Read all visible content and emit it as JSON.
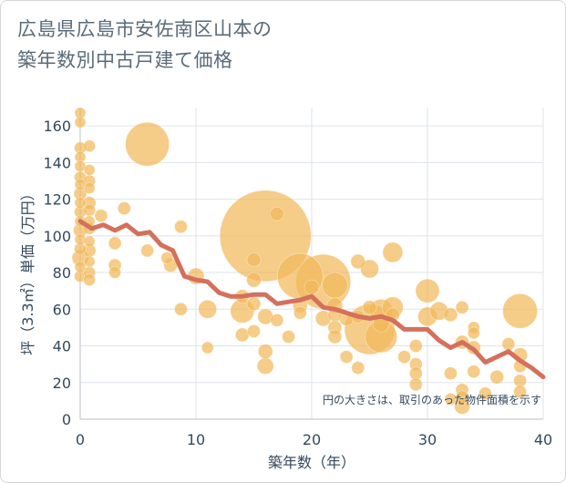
{
  "title_line1": "広島県広島市安佐南区山本の",
  "title_line2": "築年数別中古戸建て価格",
  "chart_data": {
    "type": "scatter",
    "xlabel": "築年数（年）",
    "ylabel": "坪（3.3㎡）単価（万円）",
    "xlim": [
      0,
      40
    ],
    "ylim": [
      0,
      170
    ],
    "x_ticks": [
      "0",
      "10",
      "20",
      "30",
      "40"
    ],
    "y_ticks": [
      "0",
      "20",
      "40",
      "60",
      "80",
      "100",
      "120",
      "140",
      "160"
    ],
    "x_tick_values": [
      0,
      10,
      20,
      30,
      40
    ],
    "y_tick_values": [
      0,
      20,
      40,
      60,
      80,
      100,
      120,
      140,
      160
    ],
    "grid": true,
    "bubble_color": "#f1b85a",
    "line_color": "#d4705c",
    "note": "円の大きさは、取引のあった物件面積を示す",
    "bubbles": [
      {
        "x": 0,
        "y": 167,
        "s": 1.2
      },
      {
        "x": 0,
        "y": 162,
        "s": 1.2
      },
      {
        "x": 0,
        "y": 148,
        "s": 1.3
      },
      {
        "x": 0,
        "y": 143,
        "s": 1.2
      },
      {
        "x": 0,
        "y": 138,
        "s": 1.2
      },
      {
        "x": 0,
        "y": 132,
        "s": 1.3
      },
      {
        "x": 0,
        "y": 128,
        "s": 1.2
      },
      {
        "x": 0,
        "y": 123,
        "s": 1.4
      },
      {
        "x": 0,
        "y": 118,
        "s": 1.2
      },
      {
        "x": 0,
        "y": 113,
        "s": 1.3
      },
      {
        "x": 0,
        "y": 108,
        "s": 1.2
      },
      {
        "x": 0,
        "y": 103,
        "s": 1.5
      },
      {
        "x": 0,
        "y": 98,
        "s": 1.2
      },
      {
        "x": 0,
        "y": 93,
        "s": 1.3
      },
      {
        "x": 0,
        "y": 88,
        "s": 1.8
      },
      {
        "x": 0,
        "y": 83,
        "s": 1.2
      },
      {
        "x": 0,
        "y": 78,
        "s": 1.3
      },
      {
        "x": 0.8,
        "y": 149,
        "s": 1.3
      },
      {
        "x": 0.8,
        "y": 136,
        "s": 1.2
      },
      {
        "x": 0.8,
        "y": 130,
        "s": 1.3
      },
      {
        "x": 0.8,
        "y": 126,
        "s": 1.2
      },
      {
        "x": 0.8,
        "y": 118,
        "s": 1.4
      },
      {
        "x": 0.8,
        "y": 114,
        "s": 1.3
      },
      {
        "x": 0.8,
        "y": 108,
        "s": 1.2
      },
      {
        "x": 0.8,
        "y": 104,
        "s": 1.3
      },
      {
        "x": 0.8,
        "y": 97,
        "s": 1.2
      },
      {
        "x": 0.8,
        "y": 92,
        "s": 1.4
      },
      {
        "x": 0.8,
        "y": 86,
        "s": 1.2
      },
      {
        "x": 0.8,
        "y": 80,
        "s": 1.3
      },
      {
        "x": 0.8,
        "y": 76,
        "s": 1.3
      },
      {
        "x": 1.8,
        "y": 111,
        "s": 1.4
      },
      {
        "x": 3,
        "y": 96,
        "s": 1.4
      },
      {
        "x": 3,
        "y": 84,
        "s": 1.4
      },
      {
        "x": 3,
        "y": 80,
        "s": 1.3
      },
      {
        "x": 3.8,
        "y": 115,
        "s": 1.4
      },
      {
        "x": 5.8,
        "y": 150,
        "s": 4.8
      },
      {
        "x": 5.8,
        "y": 92,
        "s": 1.4
      },
      {
        "x": 7.5,
        "y": 88,
        "s": 1.3
      },
      {
        "x": 7.8,
        "y": 84,
        "s": 1.5
      },
      {
        "x": 8.7,
        "y": 105,
        "s": 1.4
      },
      {
        "x": 8.7,
        "y": 60,
        "s": 1.4
      },
      {
        "x": 10,
        "y": 78,
        "s": 1.8
      },
      {
        "x": 11,
        "y": 60,
        "s": 2.0
      },
      {
        "x": 11,
        "y": 39,
        "s": 1.3
      },
      {
        "x": 14,
        "y": 67,
        "s": 1.5
      },
      {
        "x": 14,
        "y": 59,
        "s": 2.6
      },
      {
        "x": 14,
        "y": 46,
        "s": 1.5
      },
      {
        "x": 15,
        "y": 87,
        "s": 1.5
      },
      {
        "x": 15,
        "y": 76,
        "s": 1.6
      },
      {
        "x": 15,
        "y": 63,
        "s": 1.5
      },
      {
        "x": 15,
        "y": 48,
        "s": 1.4
      },
      {
        "x": 16,
        "y": 100,
        "s": 10.0
      },
      {
        "x": 16,
        "y": 56,
        "s": 1.7
      },
      {
        "x": 16,
        "y": 37,
        "s": 1.6
      },
      {
        "x": 16,
        "y": 29,
        "s": 1.8
      },
      {
        "x": 17,
        "y": 112,
        "s": 1.5
      },
      {
        "x": 17,
        "y": 54,
        "s": 1.4
      },
      {
        "x": 18,
        "y": 45,
        "s": 1.4
      },
      {
        "x": 19,
        "y": 78,
        "s": 5.0
      },
      {
        "x": 19,
        "y": 62,
        "s": 1.6
      },
      {
        "x": 19,
        "y": 58,
        "s": 1.4
      },
      {
        "x": 20,
        "y": 72,
        "s": 1.6
      },
      {
        "x": 21,
        "y": 75,
        "s": 6.0
      },
      {
        "x": 21,
        "y": 55,
        "s": 1.7
      },
      {
        "x": 22,
        "y": 73,
        "s": 2.8
      },
      {
        "x": 22,
        "y": 62,
        "s": 1.7
      },
      {
        "x": 22,
        "y": 57,
        "s": 1.5
      },
      {
        "x": 22,
        "y": 50,
        "s": 1.5
      },
      {
        "x": 22,
        "y": 45,
        "s": 1.5
      },
      {
        "x": 23,
        "y": 55,
        "s": 1.6
      },
      {
        "x": 23,
        "y": 34,
        "s": 1.4
      },
      {
        "x": 24,
        "y": 86,
        "s": 1.6
      },
      {
        "x": 24,
        "y": 56,
        "s": 1.4
      },
      {
        "x": 24,
        "y": 28,
        "s": 1.4
      },
      {
        "x": 25,
        "y": 82,
        "s": 2.0
      },
      {
        "x": 25,
        "y": 61,
        "s": 1.5
      },
      {
        "x": 25,
        "y": 49,
        "s": 5.5
      },
      {
        "x": 26,
        "y": 59,
        "s": 2.6
      },
      {
        "x": 26,
        "y": 52,
        "s": 1.8
      },
      {
        "x": 26,
        "y": 45,
        "s": 3.5
      },
      {
        "x": 27,
        "y": 91,
        "s": 2.2
      },
      {
        "x": 27,
        "y": 61,
        "s": 2.3
      },
      {
        "x": 27,
        "y": 57,
        "s": 1.5
      },
      {
        "x": 28,
        "y": 34,
        "s": 1.4
      },
      {
        "x": 29,
        "y": 30,
        "s": 1.4
      },
      {
        "x": 29,
        "y": 25,
        "s": 1.4
      },
      {
        "x": 29,
        "y": 19,
        "s": 1.4
      },
      {
        "x": 29,
        "y": 40,
        "s": 1.4
      },
      {
        "x": 30,
        "y": 70,
        "s": 2.6
      },
      {
        "x": 30,
        "y": 56,
        "s": 2.1
      },
      {
        "x": 31,
        "y": 59,
        "s": 2.0
      },
      {
        "x": 32,
        "y": 57,
        "s": 1.5
      },
      {
        "x": 32,
        "y": 25,
        "s": 1.4
      },
      {
        "x": 32,
        "y": 11,
        "s": 1.3
      },
      {
        "x": 33,
        "y": 61,
        "s": 1.4
      },
      {
        "x": 33,
        "y": 42,
        "s": 1.5
      },
      {
        "x": 33,
        "y": 16,
        "s": 1.4
      },
      {
        "x": 33,
        "y": 12,
        "s": 1.4
      },
      {
        "x": 33,
        "y": 7,
        "s": 1.7
      },
      {
        "x": 34,
        "y": 50,
        "s": 1.3
      },
      {
        "x": 34,
        "y": 47,
        "s": 1.3
      },
      {
        "x": 34,
        "y": 39,
        "s": 1.5
      },
      {
        "x": 34,
        "y": 26,
        "s": 1.4
      },
      {
        "x": 35,
        "y": 14,
        "s": 1.4
      },
      {
        "x": 36,
        "y": 23,
        "s": 1.5
      },
      {
        "x": 37,
        "y": 41,
        "s": 1.4
      },
      {
        "x": 38,
        "y": 59,
        "s": 3.8
      },
      {
        "x": 38,
        "y": 35,
        "s": 1.6
      },
      {
        "x": 38,
        "y": 29,
        "s": 1.4
      },
      {
        "x": 38,
        "y": 21,
        "s": 1.4
      },
      {
        "x": 38,
        "y": 15,
        "s": 1.4
      }
    ],
    "trend": {
      "x": [
        0,
        1,
        2,
        3,
        4,
        5,
        6,
        7,
        8,
        9,
        10,
        11,
        12,
        13,
        14,
        15,
        16,
        17,
        18,
        19,
        20,
        21,
        22,
        23,
        24,
        25,
        26,
        27,
        28,
        29,
        30,
        31,
        32,
        33,
        34,
        35,
        36,
        37,
        38,
        39,
        40
      ],
      "y": [
        108,
        104,
        106,
        103,
        106,
        101,
        102,
        95,
        92,
        78,
        76,
        75,
        69,
        67,
        67,
        68,
        68,
        63,
        64,
        65,
        67,
        61,
        60,
        58,
        56,
        55,
        56,
        54,
        49,
        49,
        49,
        43,
        39,
        42,
        38,
        31,
        34,
        37,
        32,
        28,
        23
      ]
    }
  }
}
